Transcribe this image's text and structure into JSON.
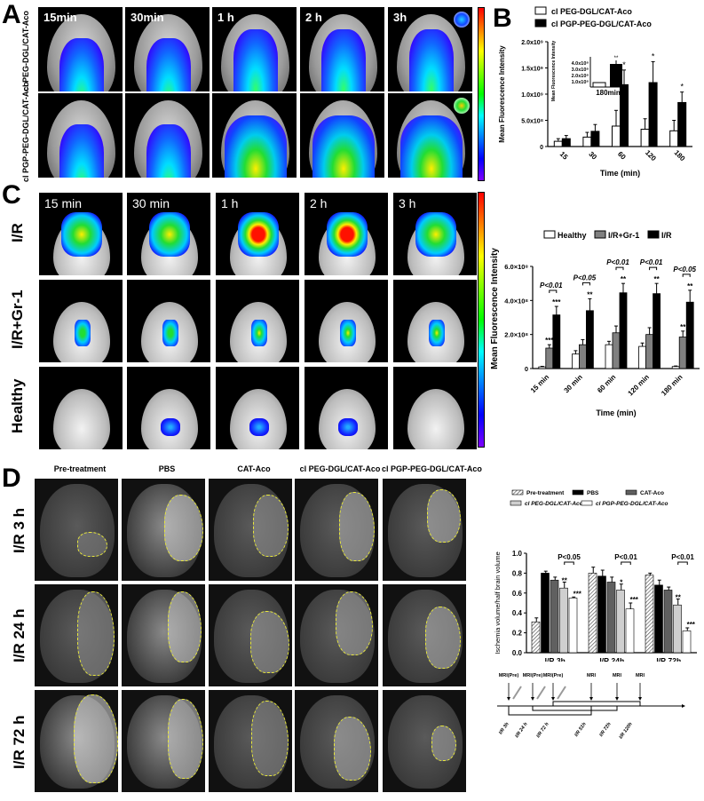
{
  "panels": {
    "A": {
      "letter": "A",
      "time_labels": [
        "15min",
        "30min",
        "1 h",
        "2 h",
        "3h"
      ],
      "row_labels": [
        "cl PEG-DGL/CAT-Aco",
        "cl PGP-PEG-DGL/CAT-Aco"
      ]
    },
    "B": {
      "letter": "B"
    },
    "C": {
      "letter": "C",
      "time_labels": [
        "15 min",
        "30 min",
        "1 h",
        "2 h",
        "3 h"
      ],
      "row_labels": [
        "I/R",
        "I/R+Gr-1",
        "Healthy"
      ]
    },
    "D": {
      "letter": "D",
      "column_headers": [
        "Pre-treatment",
        "PBS",
        "CAT-Aco",
        "cl PEG-DGL/CAT-Aco",
        "cl PGP-PEG-DGL/CAT-Aco"
      ],
      "row_labels": [
        "I/R 3 h",
        "I/R 24 h",
        "I/R 72 h"
      ]
    }
  },
  "chart_data": [
    {
      "id": "B",
      "type": "bar",
      "title": "",
      "xlabel": "Time (min)",
      "ylabel": "Mean Fluorescence Intensity",
      "categories": [
        "15",
        "30",
        "60",
        "120",
        "180"
      ],
      "yticks": [
        "0",
        "5.0x10⁸",
        "1.0x10⁹",
        "1.5x10⁹",
        "2.0x10⁹"
      ],
      "ylim": [
        0,
        2000000000.0
      ],
      "legend": [
        "cl PEG-DGL/CAT-Aco",
        "cl PGP-PEG-DGL/CAT-Aco"
      ],
      "series": [
        {
          "name": "cl PEG-DGL/CAT-Aco",
          "color": "#ffffff",
          "values": [
            100000000.0,
            180000000.0,
            390000000.0,
            330000000.0,
            300000000.0
          ],
          "errors": [
            50000000.0,
            90000000.0,
            300000000.0,
            200000000.0,
            200000000.0
          ]
        },
        {
          "name": "cl PGP-PEG-DGL/CAT-Aco",
          "color": "#000000",
          "values": [
            150000000.0,
            290000000.0,
            1180000000.0,
            1220000000.0,
            840000000.0
          ],
          "errors": [
            60000000.0,
            130000000.0,
            280000000.0,
            400000000.0,
            200000000.0
          ]
        }
      ],
      "significance": [
        "",
        "",
        "*",
        "*",
        "*"
      ],
      "inset": {
        "label": "180min",
        "ylabel": "Mean Fluorescence Intensity",
        "yticks": [
          "1.0x10⁸",
          "2.0x10⁸",
          "3.0x10⁸",
          "4.0x10⁸"
        ],
        "values": [
          100000000.0,
          300000000.0
        ],
        "errors": [
          5000000.0,
          30000000.0
        ],
        "significance": "**"
      }
    },
    {
      "id": "C",
      "type": "bar",
      "xlabel": "Time (min)",
      "ylabel": "Mean Fluorescence Intensity",
      "categories": [
        "15 min",
        "30 min",
        "60 min",
        "120 min",
        "180 min"
      ],
      "yticks": [
        "0",
        "2.0×10⁸",
        "4.0×10⁸",
        "6.0×10⁸"
      ],
      "ylim": [
        0,
        600000000.0
      ],
      "legend": [
        "Healthy",
        "I/R+Gr-1",
        "I/R"
      ],
      "series": [
        {
          "name": "Healthy",
          "color": "#ffffff",
          "values": [
            10000000.0,
            85000000.0,
            140000000.0,
            130000000.0,
            12000000.0
          ],
          "errors": [
            3000000.0,
            20000000.0,
            20000000.0,
            20000000.0,
            3000000.0
          ]
        },
        {
          "name": "I/R+Gr-1",
          "color": "#808080",
          "values": [
            120000000.0,
            140000000.0,
            210000000.0,
            200000000.0,
            185000000.0
          ],
          "errors": [
            20000000.0,
            30000000.0,
            40000000.0,
            40000000.0,
            35000000.0
          ]
        },
        {
          "name": "I/R",
          "color": "#000000",
          "values": [
            315000000.0,
            340000000.0,
            445000000.0,
            440000000.0,
            390000000.0
          ],
          "errors": [
            50000000.0,
            70000000.0,
            55000000.0,
            60000000.0,
            70000000.0
          ]
        }
      ],
      "group_pvalues": [
        "P<0.01",
        "P<0.05",
        "P<0.01",
        "P<0.01",
        "P<0.05"
      ],
      "significance_grcr": [
        "***",
        "",
        "",
        "",
        "**"
      ],
      "significance_ir": [
        "***",
        "**",
        "**",
        "**",
        "**"
      ]
    },
    {
      "id": "D",
      "type": "bar",
      "xlabel": "",
      "ylabel": "Ischemia volume/half brain volume",
      "categories": [
        "I/R 3h",
        "I/R 24h",
        "I/R 72h"
      ],
      "yticks": [
        "0.0",
        "0.2",
        "0.4",
        "0.6",
        "0.8",
        "1.0"
      ],
      "ylim": [
        0,
        1.0
      ],
      "legend": [
        "Pre-treatment",
        "PBS",
        "CAT-Aco",
        "cl PEG-DGL/CAT-Aco",
        "cl PGP-PEG-DGL/CAT-Aco"
      ],
      "series": [
        {
          "name": "Pre-treatment",
          "color": "hatched",
          "values": [
            0.31,
            0.8,
            0.78
          ],
          "errors": [
            0.04,
            0.06,
            0.02
          ]
        },
        {
          "name": "PBS",
          "color": "#000000",
          "values": [
            0.8,
            0.77,
            0.68
          ],
          "errors": [
            0.02,
            0.06,
            0.05
          ]
        },
        {
          "name": "CAT-Aco",
          "color": "#606060",
          "values": [
            0.73,
            0.71,
            0.63
          ],
          "errors": [
            0.03,
            0.05,
            0.03
          ]
        },
        {
          "name": "cl PEG-DGL/CAT-Aco",
          "color": "#cfcfcf",
          "values": [
            0.65,
            0.63,
            0.48
          ],
          "errors": [
            0.06,
            0.06,
            0.06
          ]
        },
        {
          "name": "cl PGP-PEG-DGL/CAT-Aco",
          "color": "#ffffff",
          "values": [
            0.55,
            0.44,
            0.22
          ],
          "errors": [
            0.01,
            0.06,
            0.03
          ]
        }
      ],
      "group_pvalues": [
        "P<0.05",
        "P<0.01",
        "P<0.01"
      ],
      "significance_peg": [
        "**",
        "*",
        "**"
      ],
      "significance_pgp": [
        "***",
        "***",
        "***"
      ]
    }
  ],
  "timeline": {
    "top_labels": [
      "MRI(Pre)",
      "MRI(Pre)",
      "MRI(Pre)",
      "MRI",
      "MRI",
      "MRI"
    ],
    "bottom_labels": [
      "I/R 3h",
      "I/R 24 h",
      "I/R 72 h",
      "I/R 51h",
      "I/R 72h",
      "I/R 120h"
    ]
  }
}
